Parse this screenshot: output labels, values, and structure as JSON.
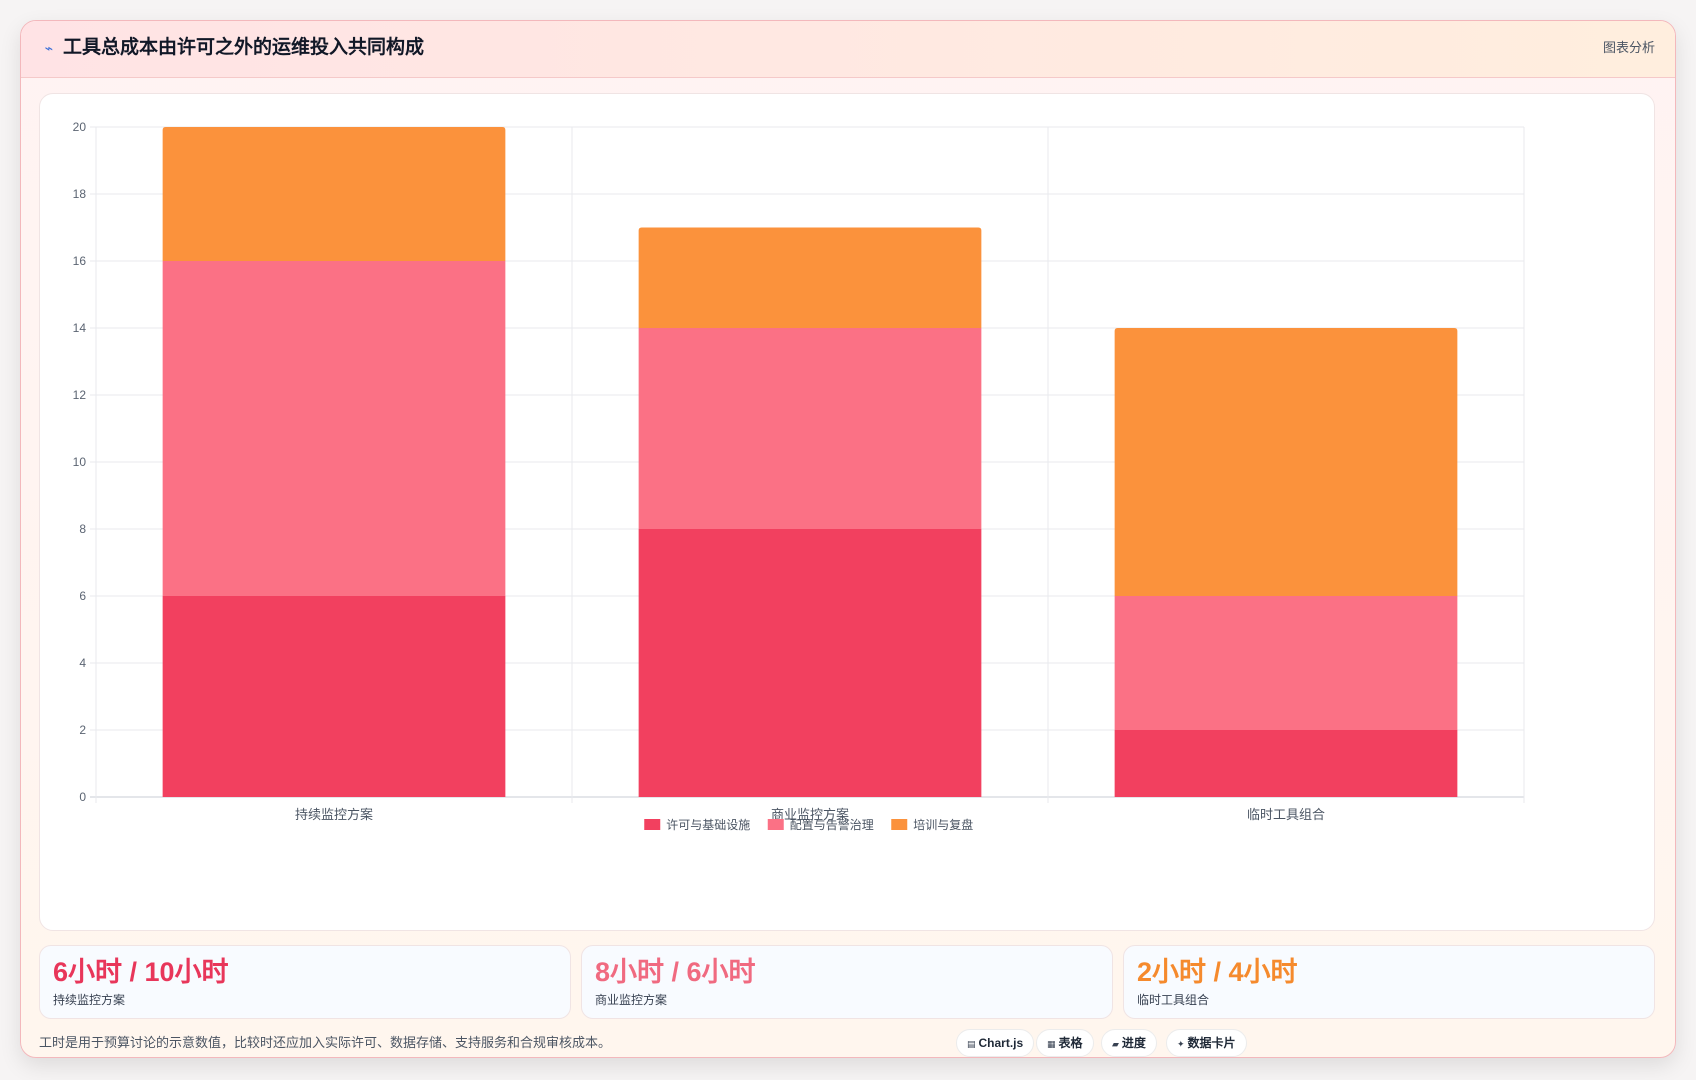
{
  "header": {
    "icon": "sparkline-icon",
    "title": "工具总成本由许可之外的运维投入共同构成",
    "tag": "图表分析"
  },
  "colors": {
    "series_1": "#f2405f",
    "series_2": "#fb7185",
    "series_3": "#fb923c"
  },
  "chart_data": {
    "type": "bar",
    "stacked": true,
    "categories": [
      "持续监控方案",
      "商业监控方案",
      "临时工具组合"
    ],
    "series": [
      {
        "name": "许可与基础设施",
        "values": [
          6,
          8,
          2
        ],
        "color": "#f2405f"
      },
      {
        "name": "配置与告警治理",
        "values": [
          10,
          6,
          4
        ],
        "color": "#fb7185"
      },
      {
        "name": "培训与复盘",
        "values": [
          4,
          3,
          8
        ],
        "color": "#fb923c"
      }
    ],
    "ylim": [
      0,
      20
    ],
    "yticks": [
      0,
      2,
      4,
      6,
      8,
      10,
      12,
      14,
      16,
      18,
      20
    ],
    "grid": true,
    "legend": "bottom-center"
  },
  "kpis": [
    {
      "value": "6小时 / 10小时",
      "label": "持续监控方案",
      "color": "#e8365a"
    },
    {
      "value": "8小时 / 6小时",
      "label": "商业监控方案",
      "color": "#f06a80"
    },
    {
      "value": "2小时 / 4小时",
      "label": "临时工具组合",
      "color": "#f58a2d"
    }
  ],
  "footnote": "工时是用于预算讨论的示意数值，比较时还应加入实际许可、数据存储、支持服务和合规审核成本。",
  "pills": [
    {
      "icon": "chart-icon",
      "glyph": "▤",
      "label": "Chart.js"
    },
    {
      "icon": "table-icon",
      "glyph": "▦",
      "label": "表格"
    },
    {
      "icon": "progress-icon",
      "glyph": "▰",
      "label": "进度"
    },
    {
      "icon": "card-icon",
      "glyph": "✦",
      "label": "数据卡片"
    }
  ]
}
